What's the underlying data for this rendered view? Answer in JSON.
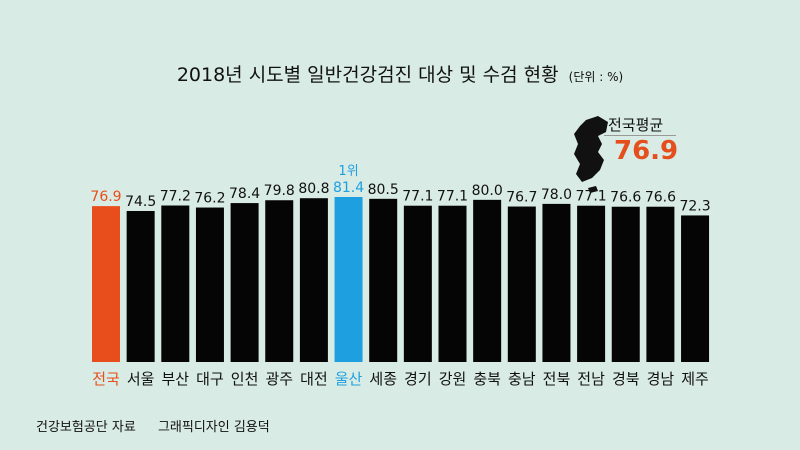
{
  "title": "2018년 시도별 일반건강검진 대상 및 수검 현황",
  "unit": "(단위 : %)",
  "source": "건강보험공단 자료",
  "designer": "그래픽디자인 김용덕",
  "average_badge": {
    "label": "전국평균",
    "value": "76.9"
  },
  "rank_label": "1위",
  "colors": {
    "background": "#d8ebe4",
    "bar": "#050505",
    "national": "#e84e1b",
    "top": "#1ea0e0"
  },
  "chart_data": {
    "type": "bar",
    "title": "2018년 시도별 일반건강검진 대상 및 수검 현황",
    "ylabel": "(단위 : %)",
    "categories": [
      "전국",
      "서울",
      "부산",
      "대구",
      "인천",
      "광주",
      "대전",
      "울산",
      "세종",
      "경기",
      "강원",
      "충북",
      "충남",
      "전북",
      "전남",
      "경북",
      "경남",
      "제주"
    ],
    "values": [
      76.9,
      74.5,
      77.2,
      76.2,
      78.4,
      79.8,
      80.8,
      81.4,
      80.5,
      77.1,
      77.1,
      80.0,
      76.7,
      78.0,
      77.1,
      76.6,
      76.6,
      72.3
    ],
    "value_labels": [
      "76.9",
      "74.5",
      "77.2",
      "76.2",
      "78.4",
      "79.8",
      "80.8",
      "81.4",
      "80.5",
      "77.1",
      "77.1",
      "80.0",
      "76.7",
      "78.0",
      "77.1",
      "76.6",
      "76.6",
      "72.3"
    ],
    "highlight": {
      "전국": "national",
      "울산": "top"
    },
    "grid": false
  }
}
